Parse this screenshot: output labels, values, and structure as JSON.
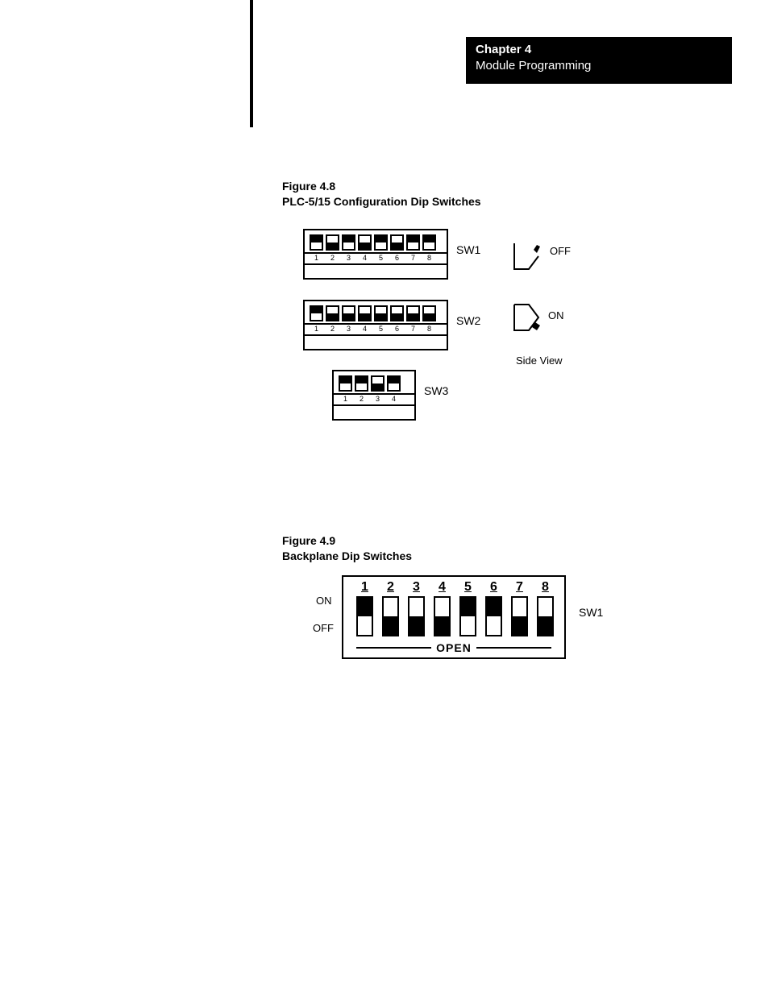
{
  "header": {
    "chapter": "Chapter 4",
    "title": "Module Programming"
  },
  "figure48": {
    "caption_num": "Figure 4.8",
    "caption_title": "PLC-5/15 Configuration Dip Switches",
    "sw1": {
      "label": "SW1",
      "positions": [
        "up",
        "down",
        "up",
        "down",
        "up",
        "down",
        "up",
        "up"
      ],
      "numbers": [
        "1",
        "2",
        "3",
        "4",
        "5",
        "6",
        "7",
        "8"
      ]
    },
    "sw2": {
      "label": "SW2",
      "positions": [
        "up",
        "down",
        "down",
        "down",
        "down",
        "down",
        "down",
        "down"
      ],
      "numbers": [
        "1",
        "2",
        "3",
        "4",
        "5",
        "6",
        "7",
        "8"
      ]
    },
    "sw3": {
      "label": "SW3",
      "positions": [
        "up",
        "up",
        "down",
        "up"
      ],
      "numbers": [
        "1",
        "2",
        "3",
        "4"
      ]
    },
    "side": {
      "off_label": "OFF",
      "on_label": "ON",
      "caption": "Side  View"
    }
  },
  "figure49": {
    "caption_num": "Figure 4.9",
    "caption_title": "Backplane Dip Switches",
    "label": "SW1",
    "on_label": "ON",
    "off_label": "OFF",
    "open_label": "OPEN",
    "numbers": [
      "1",
      "2",
      "3",
      "4",
      "5",
      "6",
      "7",
      "8"
    ],
    "positions": [
      "on",
      "off",
      "off",
      "off",
      "on",
      "on",
      "off",
      "off"
    ]
  },
  "colors": {
    "black": "#000000",
    "white": "#ffffff"
  }
}
